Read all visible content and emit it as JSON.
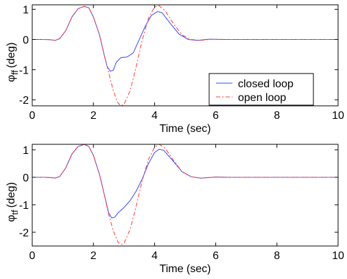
{
  "chart_data": [
    {
      "type": "line",
      "xlabel": "Time (sec)",
      "ylabel": {
        "main": "φ",
        "sub": "ff",
        "unit": "(deg)"
      },
      "xlim": [
        0,
        10
      ],
      "ylim": [
        -2.2,
        1.15
      ],
      "xticks": [
        "0",
        "2",
        "4",
        "6",
        "8",
        "10"
      ],
      "yticks": [
        "-2",
        "-1",
        "0",
        "1"
      ],
      "legend": {
        "position": "bottom-right",
        "entries": [
          "closed loop",
          "open loop"
        ]
      },
      "grid": false,
      "series": [
        {
          "name": "closed loop",
          "color": "#3344ff",
          "dash": "solid",
          "points": [
            [
              0,
              0
            ],
            [
              0.4,
              0
            ],
            [
              0.6,
              -0.01
            ],
            [
              0.75,
              -0.03
            ],
            [
              0.9,
              0.03
            ],
            [
              1.1,
              0.3
            ],
            [
              1.3,
              0.75
            ],
            [
              1.5,
              1.02
            ],
            [
              1.7,
              1.1
            ],
            [
              1.85,
              1.05
            ],
            [
              2.0,
              0.75
            ],
            [
              2.2,
              0.15
            ],
            [
              2.35,
              -0.5
            ],
            [
              2.45,
              -0.9
            ],
            [
              2.55,
              -1.05
            ],
            [
              2.65,
              -1.02
            ],
            [
              2.75,
              -0.75
            ],
            [
              2.9,
              -0.6
            ],
            [
              3.1,
              -0.58
            ],
            [
              3.3,
              -0.45
            ],
            [
              3.5,
              0.0
            ],
            [
              3.7,
              0.45
            ],
            [
              3.9,
              0.8
            ],
            [
              4.1,
              0.93
            ],
            [
              4.25,
              0.88
            ],
            [
              4.5,
              0.55
            ],
            [
              4.8,
              0.18
            ],
            [
              5.1,
              0.0
            ],
            [
              5.4,
              -0.03
            ],
            [
              5.8,
              0.01
            ],
            [
              6.2,
              0
            ],
            [
              10,
              0
            ]
          ]
        },
        {
          "name": "open loop",
          "color": "#ff3333",
          "dash": "6 3 2 3",
          "points": [
            [
              0,
              0
            ],
            [
              0.4,
              0
            ],
            [
              0.6,
              -0.01
            ],
            [
              0.75,
              -0.03
            ],
            [
              0.9,
              0.03
            ],
            [
              1.1,
              0.3
            ],
            [
              1.3,
              0.75
            ],
            [
              1.5,
              1.02
            ],
            [
              1.7,
              1.1
            ],
            [
              1.85,
              1.05
            ],
            [
              2.0,
              0.75
            ],
            [
              2.2,
              0.15
            ],
            [
              2.35,
              -0.5
            ],
            [
              2.5,
              -1.1
            ],
            [
              2.65,
              -1.7
            ],
            [
              2.8,
              -2.1
            ],
            [
              2.9,
              -2.2
            ],
            [
              3.0,
              -2.15
            ],
            [
              3.2,
              -1.7
            ],
            [
              3.4,
              -0.9
            ],
            [
              3.6,
              0.0
            ],
            [
              3.8,
              0.7
            ],
            [
              4.0,
              1.08
            ],
            [
              4.15,
              1.12
            ],
            [
              4.35,
              0.95
            ],
            [
              4.6,
              0.55
            ],
            [
              4.9,
              0.15
            ],
            [
              5.2,
              0.0
            ],
            [
              5.5,
              -0.03
            ],
            [
              5.9,
              0.01
            ],
            [
              6.3,
              0
            ],
            [
              10,
              0
            ]
          ]
        }
      ]
    },
    {
      "type": "line",
      "xlabel": "Time (sec)",
      "ylabel": {
        "main": "φ",
        "sub": "tf",
        "unit": "(deg)"
      },
      "xlim": [
        0,
        10
      ],
      "ylim": [
        -2.5,
        1.2
      ],
      "xticks": [
        "0",
        "2",
        "4",
        "6",
        "8",
        "10"
      ],
      "yticks": [
        "-2",
        "-1",
        "0",
        "1"
      ],
      "grid": false,
      "series": [
        {
          "name": "closed loop",
          "color": "#3344ff",
          "dash": "solid",
          "points": [
            [
              0,
              0
            ],
            [
              0.4,
              0
            ],
            [
              0.6,
              -0.01
            ],
            [
              0.75,
              -0.03
            ],
            [
              0.9,
              0.03
            ],
            [
              1.1,
              0.35
            ],
            [
              1.3,
              0.85
            ],
            [
              1.5,
              1.12
            ],
            [
              1.7,
              1.2
            ],
            [
              1.85,
              1.12
            ],
            [
              2.0,
              0.8
            ],
            [
              2.2,
              0.1
            ],
            [
              2.35,
              -0.6
            ],
            [
              2.5,
              -1.3
            ],
            [
              2.6,
              -1.48
            ],
            [
              2.7,
              -1.45
            ],
            [
              2.8,
              -1.3
            ],
            [
              3.0,
              -1.1
            ],
            [
              3.2,
              -0.85
            ],
            [
              3.4,
              -0.5
            ],
            [
              3.6,
              -0.05
            ],
            [
              3.8,
              0.5
            ],
            [
              4.0,
              0.9
            ],
            [
              4.15,
              1.02
            ],
            [
              4.3,
              0.98
            ],
            [
              4.6,
              0.6
            ],
            [
              4.9,
              0.2
            ],
            [
              5.2,
              0.02
            ],
            [
              5.5,
              -0.03
            ],
            [
              6.0,
              0.01
            ],
            [
              6.4,
              0
            ],
            [
              10,
              0
            ]
          ]
        },
        {
          "name": "open loop",
          "color": "#ff3333",
          "dash": "6 3 2 3",
          "points": [
            [
              0,
              0
            ],
            [
              0.4,
              0
            ],
            [
              0.6,
              -0.01
            ],
            [
              0.75,
              -0.03
            ],
            [
              0.9,
              0.03
            ],
            [
              1.1,
              0.35
            ],
            [
              1.3,
              0.85
            ],
            [
              1.5,
              1.12
            ],
            [
              1.7,
              1.2
            ],
            [
              1.85,
              1.12
            ],
            [
              2.0,
              0.8
            ],
            [
              2.2,
              0.1
            ],
            [
              2.35,
              -0.6
            ],
            [
              2.5,
              -1.35
            ],
            [
              2.65,
              -1.95
            ],
            [
              2.8,
              -2.35
            ],
            [
              2.9,
              -2.45
            ],
            [
              3.0,
              -2.4
            ],
            [
              3.2,
              -1.9
            ],
            [
              3.4,
              -1.05
            ],
            [
              3.6,
              -0.1
            ],
            [
              3.8,
              0.65
            ],
            [
              4.0,
              1.1
            ],
            [
              4.15,
              1.2
            ],
            [
              4.35,
              1.05
            ],
            [
              4.6,
              0.65
            ],
            [
              4.9,
              0.2
            ],
            [
              5.2,
              0.02
            ],
            [
              5.5,
              -0.03
            ],
            [
              6.0,
              0.01
            ],
            [
              6.4,
              0
            ],
            [
              10,
              0
            ]
          ]
        }
      ]
    }
  ]
}
